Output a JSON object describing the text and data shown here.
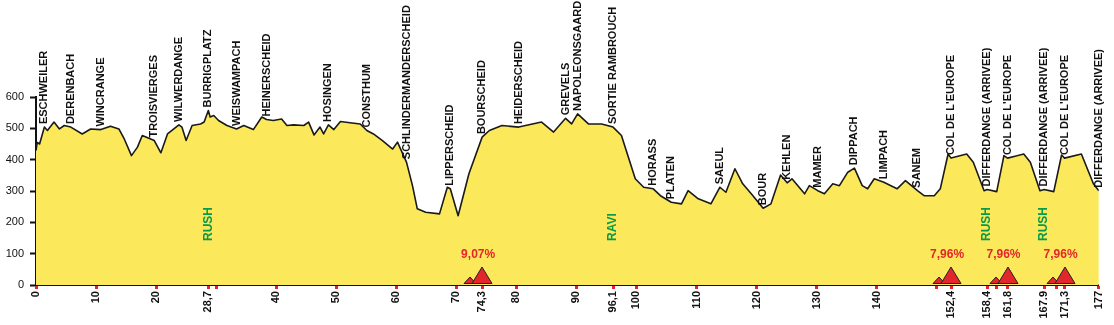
{
  "chart_data": {
    "type": "area",
    "xlim": [
      0,
      177
    ],
    "ylim": [
      0,
      600
    ],
    "yticks": [
      0,
      100,
      200,
      300,
      400,
      500,
      600
    ],
    "xticks": [
      0,
      10,
      20,
      {
        "value": 28.7,
        "label": "28,7"
      },
      {
        "value": 30,
        "label": null
      },
      40,
      50,
      60,
      70,
      {
        "value": 74.3,
        "label": "74,3"
      },
      80,
      90,
      {
        "value": 96.1,
        "label": "96,1"
      },
      100,
      110,
      120,
      130,
      140,
      {
        "value": 150,
        "label": null
      },
      {
        "value": 152.4,
        "label": "152,4"
      },
      {
        "value": 158.4,
        "label": "158,4"
      },
      {
        "value": 160,
        "label": null
      },
      {
        "value": 161.8,
        "label": "161,8"
      },
      {
        "value": 167.9,
        "label": "167.9"
      },
      {
        "value": 170,
        "label": null
      },
      {
        "value": 171.3,
        "label": "171,3"
      },
      177
    ],
    "x": [
      0,
      0.2,
      0.6,
      1.4,
      1.9,
      3.0,
      3.9,
      4.7,
      5.8,
      7.7,
      9.1,
      10.8,
      12.4,
      13.8,
      14.7,
      15.9,
      16.9,
      17.7,
      19.7,
      20.8,
      21.9,
      23.8,
      24.3,
      25.0,
      26.0,
      27.4,
      28.0,
      28.7,
      29.0,
      29.6,
      30.4,
      31.8,
      33.4,
      34.6,
      36.2,
      37.6,
      38.4,
      39.5,
      40.9,
      41.8,
      42.9,
      44.6,
      45.4,
      46.3,
      47.3,
      47.9,
      48.7,
      49.6,
      50.7,
      52.3,
      54.0,
      55.1,
      56.2,
      57.7,
      59.4,
      60.2,
      61.7,
      62.7,
      63.5,
      64.9,
      67.2,
      68.5,
      69.0,
      70.3,
      72.1,
      74.3,
      75.5,
      77.6,
      80.4,
      84.2,
      86.2,
      88.2,
      89.2,
      90.2,
      92.0,
      94.2,
      96.1,
      97.5,
      99.8,
      101.2,
      102.8,
      104.0,
      105.8,
      107.5,
      108.6,
      110.3,
      112.4,
      113.9,
      114.9,
      116.4,
      117.7,
      119.4,
      121.1,
      122.4,
      124.0,
      125.1,
      125.9,
      128.0,
      128.8,
      130.2,
      131.3,
      132.7,
      133.8,
      135.2,
      136.3,
      137.6,
      138.5,
      139.6,
      141.2,
      143.4,
      144.8,
      146.8,
      147.9,
      149.6,
      150.6,
      151.9,
      152.4,
      155.0,
      156.1,
      157.9,
      158.4,
      160.0,
      161.2,
      161.8,
      164.5,
      165.6,
      167.2,
      167.9,
      169.5,
      170.8,
      171.3,
      174.1,
      176.1,
      177
    ],
    "series": [
      {
        "color": "#fce95b",
        "values": [
          429,
          455,
          450,
          504,
          493,
          520,
          498,
          509,
          504,
          482,
          498,
          496,
          507,
          498,
          466,
          413,
          440,
          477,
          461,
          422,
          482,
          511,
          504,
          461,
          509,
          514,
          520,
          557,
          536,
          541,
          525,
          509,
          498,
          509,
          496,
          536,
          528,
          525,
          530,
          509,
          511,
          509,
          520,
          479,
          504,
          482,
          511,
          496,
          522,
          518,
          514,
          493,
          482,
          461,
          434,
          456,
          392,
          317,
          243,
          232,
          227,
          312,
          307,
          221,
          355,
          472,
          493,
          509,
          504,
          520,
          488,
          532,
          514,
          546,
          514,
          514,
          504,
          477,
          339,
          312,
          307,
          285,
          264,
          259,
          301,
          275,
          259,
          312,
          296,
          371,
          323,
          285,
          245,
          259,
          351,
          326,
          339,
          291,
          317,
          301,
          291,
          323,
          317,
          360,
          373,
          317,
          307,
          339,
          328,
          307,
          333,
          301,
          285,
          285,
          307,
          418,
          405,
          418,
          392,
          301,
          305,
          298,
          413,
          405,
          418,
          392,
          301,
          305,
          298,
          415,
          405,
          418,
          323,
          301
        ]
      }
    ],
    "annotations": [
      {
        "text": "ESCHWEILER",
        "x": 1.4,
        "y": 504
      },
      {
        "text": "DERENBACH",
        "x": 5.8,
        "y": 504
      },
      {
        "text": "WINCRANGE",
        "x": 10.8,
        "y": 496
      },
      {
        "text": "TROISVIERGES",
        "x": 19.7,
        "y": 461
      },
      {
        "text": "WILWERDANGE",
        "x": 23.8,
        "y": 511
      },
      {
        "text": "BURRIGPLATZ",
        "x": 28.7,
        "y": 557
      },
      {
        "text": "WEISWAMPACH",
        "x": 33.4,
        "y": 498
      },
      {
        "text": "HEINERSCHEID",
        "x": 38.4,
        "y": 528
      },
      {
        "text": "HOSINGEN",
        "x": 48.7,
        "y": 511
      },
      {
        "text": "CONSTHUM",
        "x": 55.1,
        "y": 493
      },
      {
        "text": "SCHLINDERMANDERSCHEID",
        "x": 61.7,
        "y": 392
      },
      {
        "text": "LIPPERSCHEID",
        "x": 69.0,
        "y": 307
      },
      {
        "text": "BOURSCHEID",
        "x": 74.3,
        "y": 472
      },
      {
        "text": "HEIDERSCHEID",
        "x": 80.4,
        "y": 504
      },
      {
        "text": "GREVELS",
        "x": 88.2,
        "y": 532
      },
      {
        "text": "NAPOLEONSGAARD",
        "x": 90.2,
        "y": 546
      },
      {
        "text": "SORTIE RAMBROUCH",
        "x": 96.1,
        "y": 504
      },
      {
        "text": "HORASS",
        "x": 102.8,
        "y": 307
      },
      {
        "text": "PLATEN",
        "x": 105.8,
        "y": 264
      },
      {
        "text": "SAEUL",
        "x": 113.9,
        "y": 312
      },
      {
        "text": "BOUR",
        "x": 121.1,
        "y": 245
      },
      {
        "text": "KEHLEN",
        "x": 125.1,
        "y": 326
      },
      {
        "text": "MAMER",
        "x": 130.2,
        "y": 301
      },
      {
        "text": "DIPPACH",
        "x": 136.3,
        "y": 373
      },
      {
        "text": "LIMPACH",
        "x": 141.2,
        "y": 328
      },
      {
        "text": "SANEM",
        "x": 146.8,
        "y": 301
      },
      {
        "text": "COL DE L'EUROPE",
        "x": 152.4,
        "y": 405
      },
      {
        "text": "DIFFERDANGE (ARRIVEE)",
        "x": 158.4,
        "y": 305
      },
      {
        "text": "COL DE L'EUROPE",
        "x": 161.8,
        "y": 405
      },
      {
        "text": "DIFFERDANGE (ARRIVEE)",
        "x": 167.9,
        "y": 305
      },
      {
        "text": "COL DE L'EUROPE",
        "x": 171.3,
        "y": 405
      },
      {
        "text": "DIFFERDANGE (ARRIVEE)",
        "x": 177,
        "y": 301
      },
      "RUSH",
      "9,07%",
      "RAVI",
      "7,96%",
      "RUSH",
      "7,96%",
      "RUSH",
      "7,96%"
    ],
    "grid": false,
    "legend": false,
    "marker": "none"
  }
}
